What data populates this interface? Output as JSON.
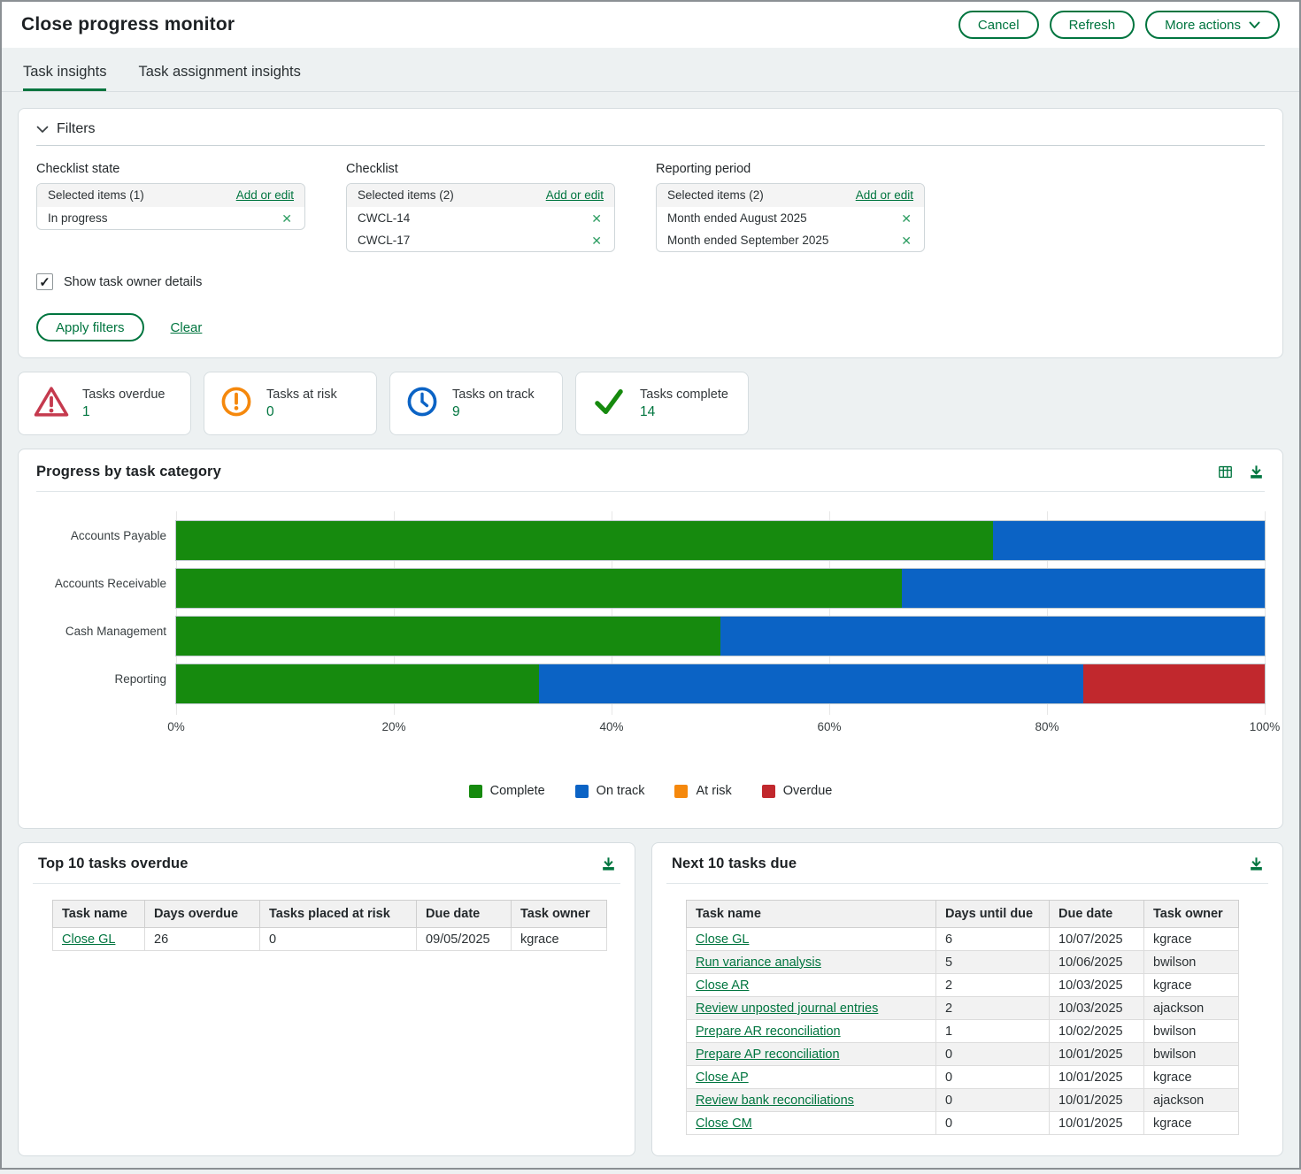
{
  "header": {
    "title": "Close progress monitor",
    "buttons": {
      "cancel": "Cancel",
      "refresh": "Refresh",
      "more_actions": "More actions"
    }
  },
  "tabs": [
    {
      "label": "Task insights",
      "active": true
    },
    {
      "label": "Task assignment insights",
      "active": false
    }
  ],
  "filters": {
    "heading": "Filters",
    "groups": [
      {
        "label": "Checklist state",
        "header": "Selected items (1)",
        "action": "Add or edit",
        "items": [
          "In progress"
        ]
      },
      {
        "label": "Checklist",
        "header": "Selected items (2)",
        "action": "Add or edit",
        "items": [
          "CWCL-14",
          "CWCL-17"
        ]
      },
      {
        "label": "Reporting period",
        "header": "Selected items (2)",
        "action": "Add or edit",
        "items": [
          "Month ended August 2025",
          "Month ended September 2025"
        ]
      }
    ],
    "checkbox_label": "Show task owner details",
    "checkbox_checked": true,
    "apply_label": "Apply filters",
    "clear_label": "Clear"
  },
  "stats": [
    {
      "label": "Tasks overdue",
      "value": "1",
      "icon": "warning-triangle-icon",
      "color": "#C53A4E"
    },
    {
      "label": "Tasks at risk",
      "value": "0",
      "icon": "exclamation-circle-icon",
      "color": "#F5880C"
    },
    {
      "label": "Tasks on track",
      "value": "9",
      "icon": "clock-icon",
      "color": "#0B63C5"
    },
    {
      "label": "Tasks complete",
      "value": "14",
      "icon": "checkmark-icon",
      "color": "#168A0E"
    }
  ],
  "chart_panel": {
    "title": "Progress by task category",
    "icons": [
      "table-view-icon",
      "download-icon"
    ]
  },
  "chart_data": {
    "type": "bar",
    "orientation": "horizontal",
    "stacked": true,
    "title": "Progress by task category",
    "categories": [
      "Accounts Payable",
      "Accounts Receivable",
      "Cash Management",
      "Reporting"
    ],
    "series": [
      {
        "name": "Complete",
        "color": "#168A0E",
        "values": [
          75,
          66.7,
          50,
          33.3
        ]
      },
      {
        "name": "On track",
        "color": "#0B63C5",
        "values": [
          25,
          33.3,
          50,
          50
        ]
      },
      {
        "name": "At risk",
        "color": "#F5880C",
        "values": [
          0,
          0,
          0,
          0
        ]
      },
      {
        "name": "Overdue",
        "color": "#C1282D",
        "values": [
          0,
          0,
          0,
          16.7
        ]
      }
    ],
    "xlim": [
      0,
      100
    ],
    "x_ticks": [
      "0%",
      "20%",
      "40%",
      "60%",
      "80%",
      "100%"
    ],
    "grid": true,
    "legend_position": "bottom"
  },
  "tables": {
    "overdue": {
      "title": "Top 10 tasks overdue",
      "columns": [
        "Task name",
        "Days overdue",
        "Tasks placed at risk",
        "Due date",
        "Task owner"
      ],
      "rows": [
        [
          "Close GL",
          "26",
          "0",
          "09/05/2025",
          "kgrace"
        ]
      ]
    },
    "due": {
      "title": "Next 10 tasks due",
      "columns": [
        "Task name",
        "Days until due",
        "Due date",
        "Task owner"
      ],
      "rows": [
        [
          "Close GL",
          "6",
          "10/07/2025",
          "kgrace"
        ],
        [
          "Run variance analysis",
          "5",
          "10/06/2025",
          "bwilson"
        ],
        [
          "Close AR",
          "2",
          "10/03/2025",
          "kgrace"
        ],
        [
          "Review unposted journal entries",
          "2",
          "10/03/2025",
          "ajackson"
        ],
        [
          "Prepare AR reconciliation",
          "1",
          "10/02/2025",
          "bwilson"
        ],
        [
          "Prepare AP reconciliation",
          "0",
          "10/01/2025",
          "bwilson"
        ],
        [
          "Close AP",
          "0",
          "10/01/2025",
          "kgrace"
        ],
        [
          "Review bank reconciliations",
          "0",
          "10/01/2025",
          "ajackson"
        ],
        [
          "Close CM",
          "0",
          "10/01/2025",
          "kgrace"
        ]
      ]
    }
  },
  "colors": {
    "accent_green": "#00753F",
    "page_background": "#edf1f2",
    "complete": "#168A0E",
    "on_track": "#0B63C5",
    "at_risk": "#F5880C",
    "overdue": "#C1282D"
  }
}
